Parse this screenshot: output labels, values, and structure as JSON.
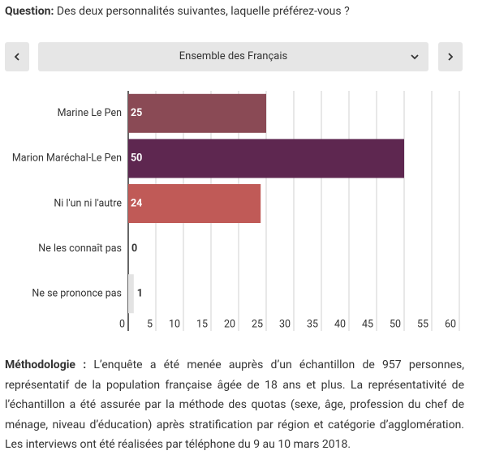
{
  "question": {
    "label": "Question:",
    "text": "Des deux personnalités suivantes, laquelle préférez-vous ?"
  },
  "selector": {
    "label": "Ensemble des Français"
  },
  "chart_data": {
    "type": "hbar",
    "categories": [
      "Marine Le Pen",
      "Marion Maréchal-Le Pen",
      "Ni l'un ni l'autre",
      "Ne les connaît pas",
      "Ne se prononce pas"
    ],
    "values": [
      25,
      50,
      24,
      0,
      1
    ],
    "colors": [
      "#8a4a55",
      "#5e2750",
      "#c05a57",
      "#d9d9d9",
      "#e3e3e3"
    ],
    "xlim": [
      0,
      60
    ],
    "xticks": [
      0,
      5,
      10,
      15,
      20,
      25,
      30,
      35,
      40,
      45,
      50,
      55,
      60
    ],
    "grid": true
  },
  "methodology": {
    "label": "Méthodologie :",
    "text": "L’enquête a été menée auprès d’un échantillon de 957 personnes, représentatif de la population française âgée de 18 ans et plus. La représentativité de l’échantillon a été assurée par la méthode des quotas (sexe, âge, profession du chef de ménage, niveau d’éducation) après stratification par région et catégorie d’agglomération. Les interviews ont été réalisées par téléphone du 9 au 10 mars 2018."
  }
}
